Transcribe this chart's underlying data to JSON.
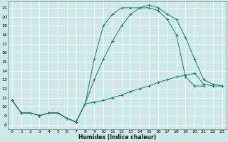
{
  "title": "",
  "xlabel": "Humidex (Indice chaleur)",
  "bg_color": "#cce8e8",
  "line_color": "#1a7a6e",
  "grid_color": "#b0d0d0",
  "xlim": [
    -0.5,
    23.5
  ],
  "ylim": [
    7.5,
    21.7
  ],
  "xticks": [
    0,
    1,
    2,
    3,
    4,
    5,
    6,
    7,
    8,
    9,
    10,
    11,
    12,
    13,
    14,
    15,
    16,
    17,
    18,
    19,
    20,
    21,
    22,
    23
  ],
  "yticks": [
    8,
    9,
    10,
    11,
    12,
    13,
    14,
    15,
    16,
    17,
    18,
    19,
    20,
    21
  ],
  "line1_x": [
    0,
    1,
    2,
    3,
    4,
    5,
    6,
    7,
    8,
    9,
    10,
    11,
    12,
    13,
    14,
    15,
    16,
    17,
    18,
    19,
    20,
    21,
    22,
    23
  ],
  "line1_y": [
    10.7,
    9.3,
    9.3,
    9.0,
    9.3,
    9.3,
    8.7,
    8.3,
    10.3,
    10.5,
    10.7,
    11.0,
    11.3,
    11.7,
    12.0,
    12.3,
    12.7,
    13.0,
    13.3,
    13.5,
    13.7,
    12.5,
    12.3,
    12.3
  ],
  "line2_x": [
    0,
    1,
    2,
    3,
    4,
    5,
    6,
    7,
    8,
    9,
    10,
    11,
    12,
    13,
    14,
    15,
    16,
    17,
    18,
    19,
    20,
    21
  ],
  "line2_y": [
    10.7,
    9.3,
    9.3,
    9.0,
    9.3,
    9.3,
    8.7,
    8.3,
    10.3,
    13.0,
    15.3,
    17.3,
    19.0,
    20.3,
    21.0,
    21.0,
    20.7,
    19.7,
    18.0,
    13.3,
    12.3,
    12.3
  ],
  "line3_x": [
    0,
    1,
    2,
    3,
    4,
    5,
    6,
    7,
    8,
    9,
    10,
    11,
    12,
    13,
    14,
    15,
    16,
    17,
    18,
    19,
    20,
    21,
    22,
    23
  ],
  "line3_y": [
    10.7,
    9.3,
    9.3,
    9.0,
    9.3,
    9.3,
    8.7,
    8.3,
    10.3,
    15.3,
    19.0,
    20.3,
    21.0,
    21.0,
    21.0,
    21.3,
    21.0,
    20.3,
    19.7,
    17.7,
    15.3,
    13.0,
    12.5,
    12.3
  ]
}
